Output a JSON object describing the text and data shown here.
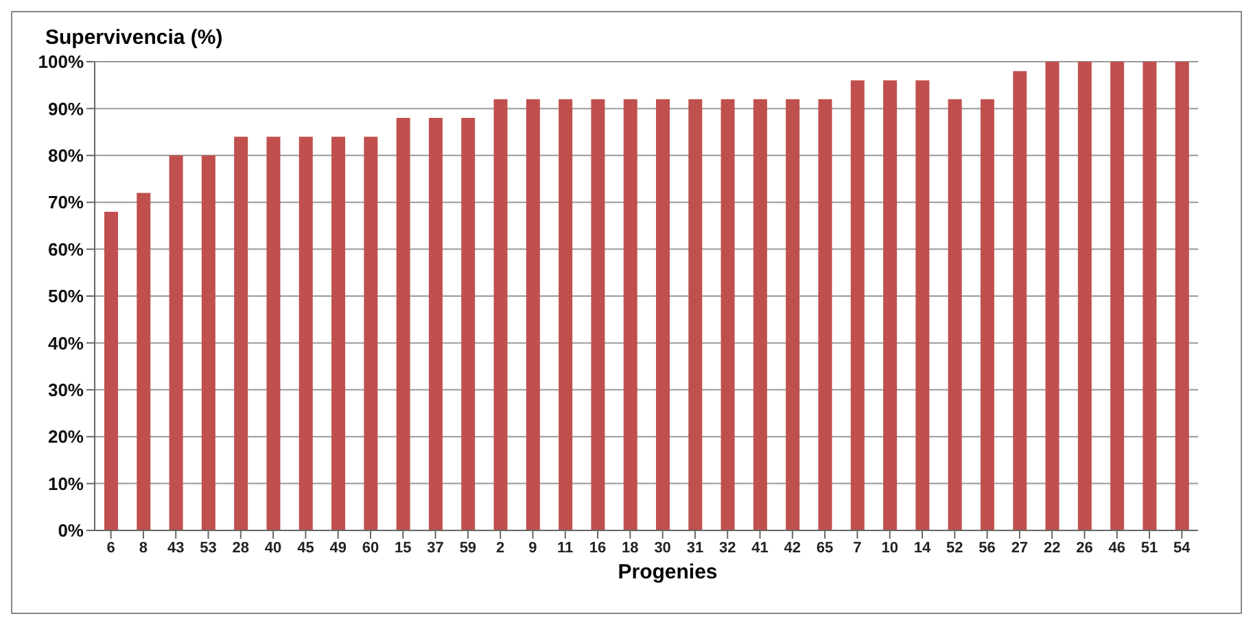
{
  "chart_data": {
    "type": "bar",
    "title": "Supervivencia  (%)",
    "xlabel": "Progenies",
    "categories": [
      "6",
      "8",
      "43",
      "53",
      "28",
      "40",
      "45",
      "49",
      "60",
      "15",
      "37",
      "59",
      "2",
      "9",
      "11",
      "16",
      "18",
      "30",
      "31",
      "32",
      "41",
      "42",
      "65",
      "7",
      "10",
      "14",
      "52",
      "56",
      "27",
      "22",
      "26",
      "46",
      "51",
      "54"
    ],
    "values": [
      68,
      72,
      80,
      80,
      84,
      84,
      84,
      84,
      84,
      88,
      88,
      88,
      92,
      92,
      92,
      92,
      92,
      92,
      92,
      92,
      92,
      92,
      92,
      96,
      96,
      96,
      92,
      92,
      98,
      100,
      100,
      100,
      100,
      100
    ],
    "color": "#c0504d",
    "ylim": [
      0,
      100
    ],
    "yticks": [
      {
        "value": 0,
        "label": "0%"
      },
      {
        "value": 10,
        "label": "10%"
      },
      {
        "value": 20,
        "label": "20%"
      },
      {
        "value": 30,
        "label": "30%"
      },
      {
        "value": 40,
        "label": "40%"
      },
      {
        "value": 50,
        "label": "50%"
      },
      {
        "value": 60,
        "label": "60%"
      },
      {
        "value": 70,
        "label": "70%"
      },
      {
        "value": 80,
        "label": "80%"
      },
      {
        "value": 90,
        "label": "90%"
      },
      {
        "value": 100,
        "label": "100%"
      }
    ],
    "grid": "y",
    "legend": false
  }
}
